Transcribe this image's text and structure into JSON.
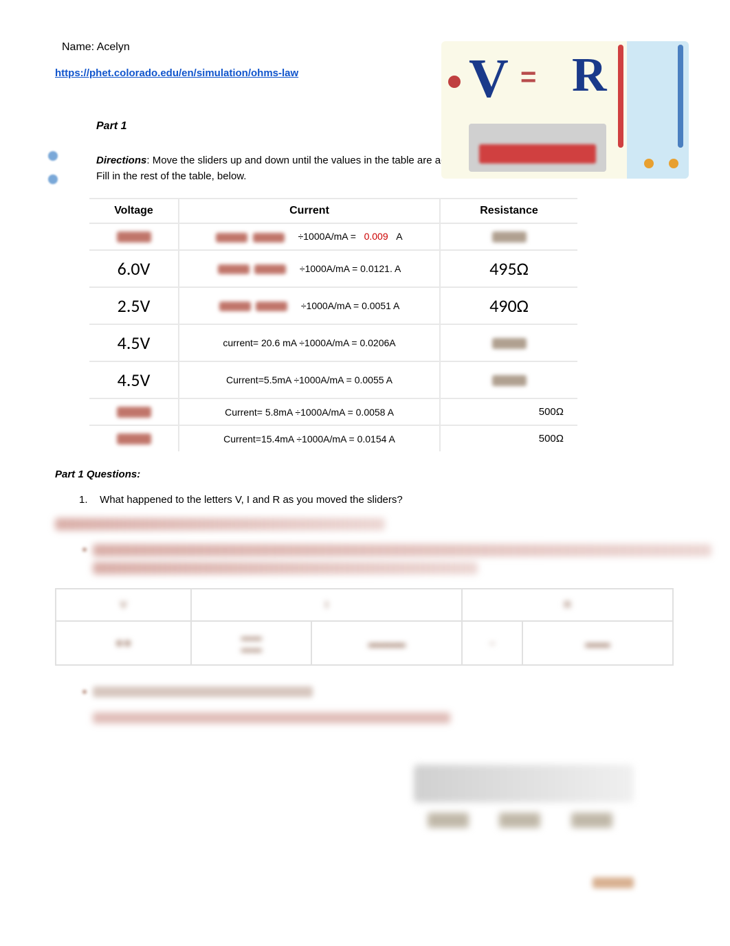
{
  "name_line": "Name: Acelyn",
  "link_text": "https://phet.colorado.edu/en/simulation/ohms-law",
  "part1_heading": "Part 1",
  "directions_label": "Directions",
  "directions_text": ": Move the sliders up and down until the values in the table are achieved.  Fill in the rest of the table, below.",
  "table": {
    "headers": {
      "voltage": "Voltage",
      "current": "Current",
      "resistance": "Resistance"
    },
    "rows": [
      {
        "voltage": "",
        "current_prefix": "",
        "current_conv": "÷1000A/mA =",
        "current_val": "0.009",
        "current_unit": "A",
        "resistance": "",
        "v_blur": true,
        "r_blur": true,
        "c_blur_left": true,
        "red_val": true
      },
      {
        "voltage": "6.0V",
        "current_prefix": "",
        "current_conv": "÷1000A/mA = 0.0121.  A",
        "current_val": "",
        "current_unit": "",
        "resistance": "495Ω",
        "c_blur_left": true
      },
      {
        "voltage": "2.5V",
        "current_prefix": "",
        "current_conv": "÷1000A/mA =  0.0051 A",
        "current_val": "",
        "current_unit": "",
        "resistance": "490Ω",
        "c_blur_left": true
      },
      {
        "voltage": "4.5V",
        "current_prefix": "current=   20.6 mA ÷1000A/mA = 0.0206A",
        "current_conv": "",
        "current_val": "",
        "current_unit": "",
        "resistance": "",
        "r_blur": true
      },
      {
        "voltage": "4.5V",
        "current_prefix": "Current=5.5mA ÷1000A/mA =   0.0055 A",
        "current_conv": "",
        "current_val": "",
        "current_unit": "",
        "resistance": "",
        "r_blur": true
      },
      {
        "voltage": "",
        "current_prefix": "Current= 5.8mA ÷1000A/mA =   0.0058    A",
        "current_conv": "",
        "current_val": "",
        "current_unit": "",
        "resistance": "500Ω",
        "v_blur": true,
        "r_right": true
      },
      {
        "voltage": "",
        "current_prefix": "Current=15.4mA ÷1000A/mA =  0.0154 A",
        "current_conv": "",
        "current_val": "",
        "current_unit": "",
        "resistance": "500Ω",
        "v_blur": true,
        "r_right": true
      }
    ]
  },
  "questions_heading": "Part 1 Questions",
  "q1_num": "1.",
  "q1_text": "What happened to the letters V, I and R as you moved the sliders?",
  "colors": {
    "link": "#1155cc",
    "red": "#cc0000",
    "border": "#e8e8e8",
    "blur_warm": "#c0756a"
  },
  "fonts": {
    "body": 15,
    "big_value": 26,
    "heading": 16,
    "small": 14
  }
}
